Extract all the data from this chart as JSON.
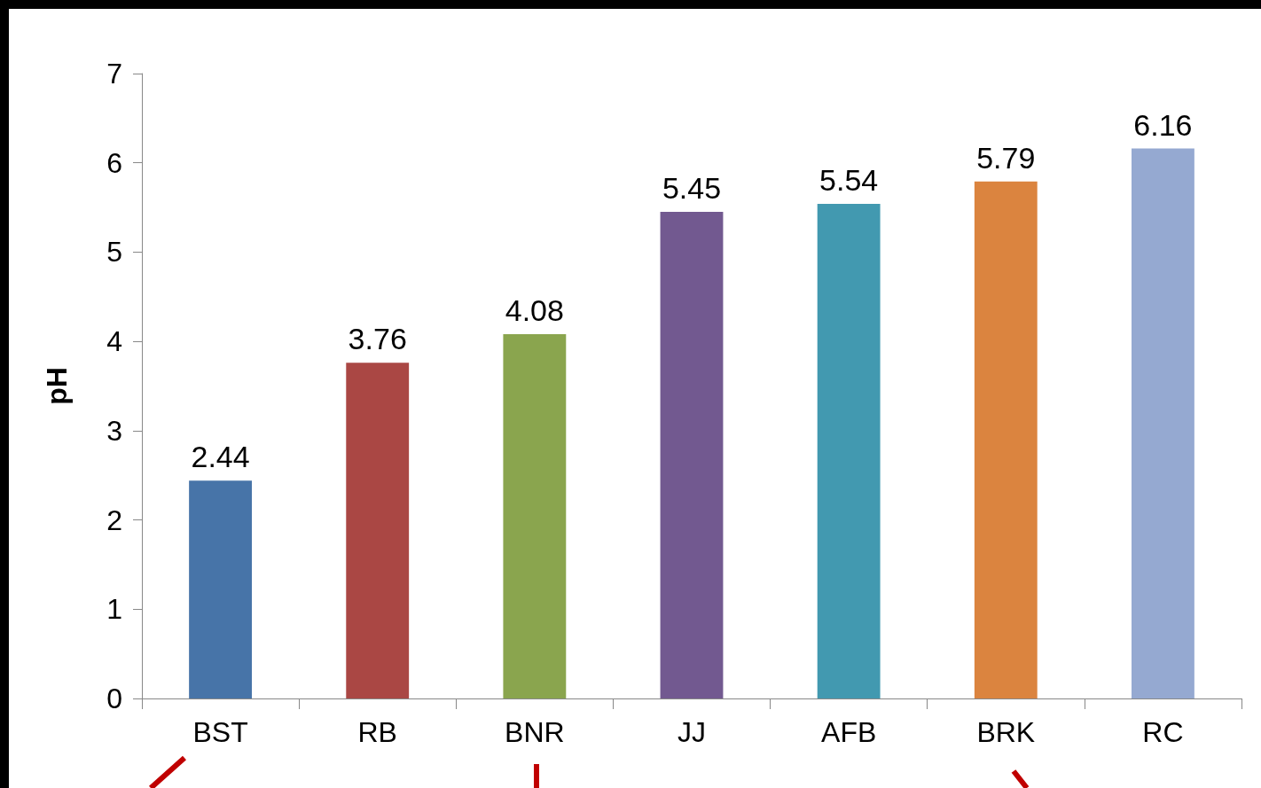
{
  "chart_data": {
    "type": "bar",
    "ylabel": "pH",
    "categories": [
      "BST",
      "RB",
      "BNR",
      "JJ",
      "AFB",
      "BRK",
      "RC"
    ],
    "values": [
      2.44,
      3.76,
      4.08,
      5.45,
      5.54,
      5.79,
      6.16
    ],
    "colors": [
      "#4774a8",
      "#aa4744",
      "#8aa54e",
      "#725990",
      "#4299b0",
      "#db843f",
      "#95a9d1"
    ],
    "ylim": [
      0,
      7
    ],
    "yticks": [
      0,
      1,
      2,
      3,
      4,
      5,
      6,
      7
    ],
    "grid": false,
    "data_labels": true
  }
}
